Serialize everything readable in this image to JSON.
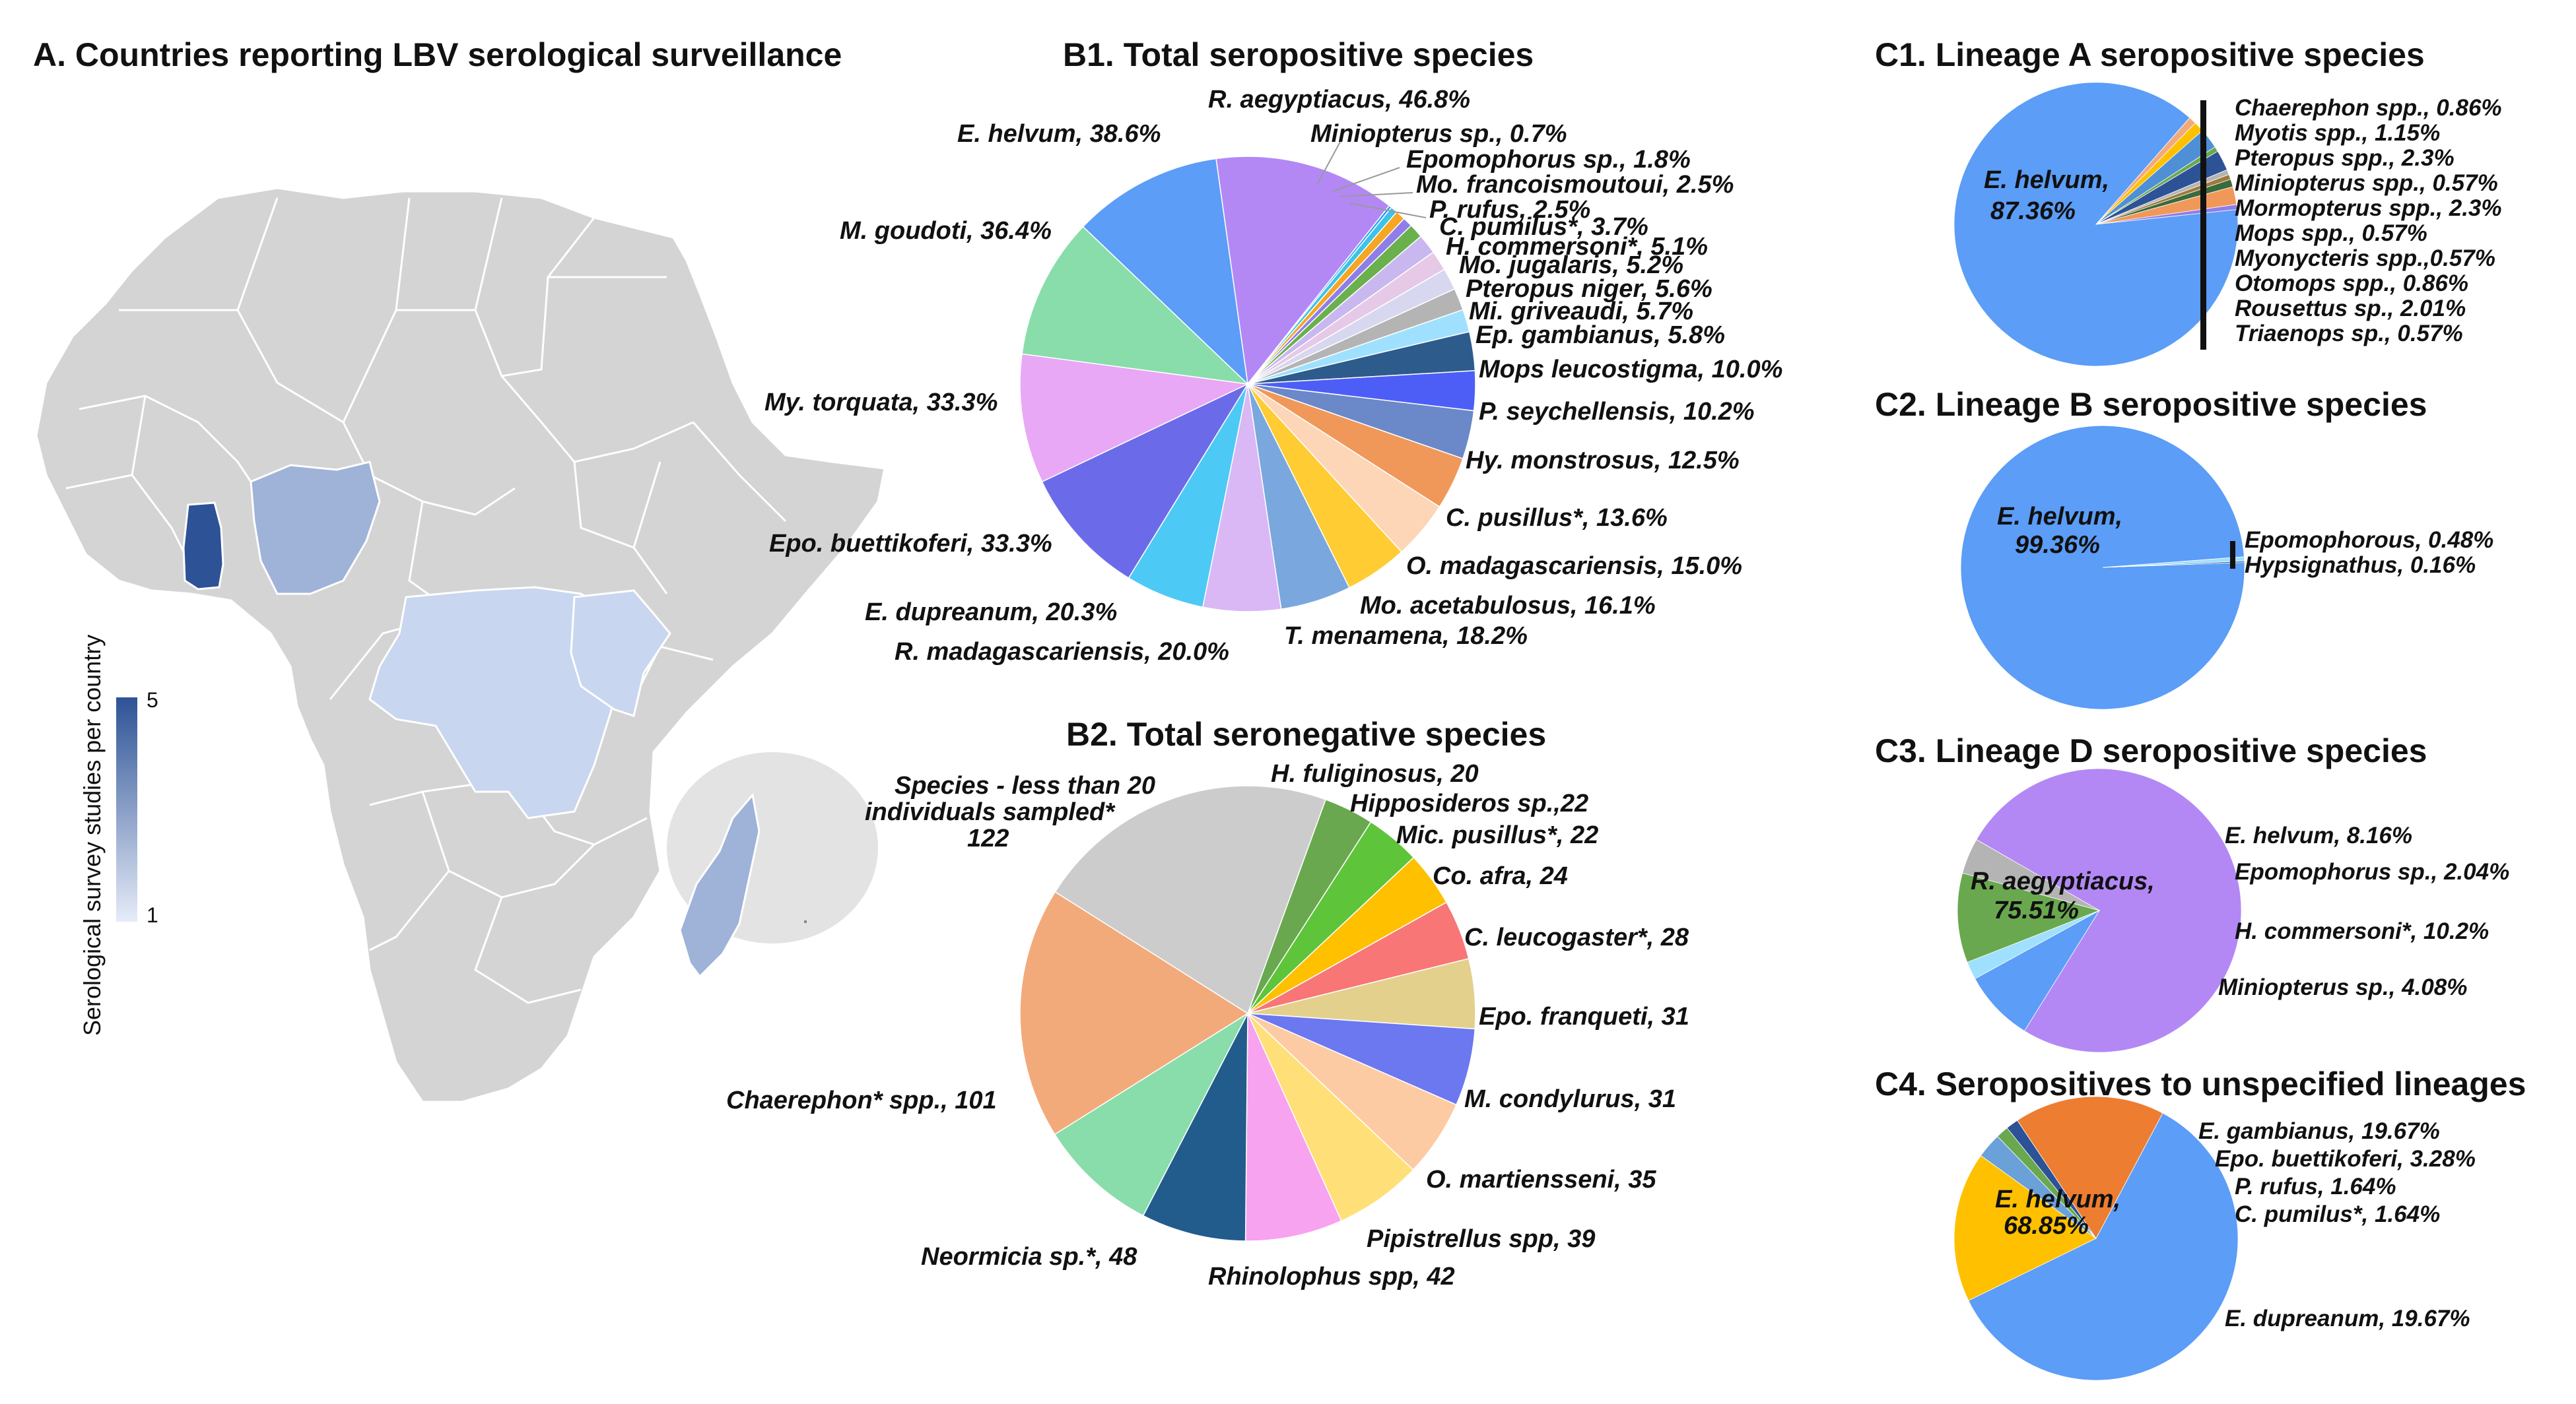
{
  "panelA": {
    "title": "A. Countries reporting LBV serological surveillance",
    "legend_title": "Serological survey studies per country",
    "legend_max": "5",
    "legend_min": "1",
    "colors": {
      "base": "#d4d4d4",
      "border": "#ffffff",
      "low": "#c9d6ef",
      "mid": "#9fb2d8",
      "high": "#2d5296",
      "inset": "#e3e3e3"
    }
  },
  "chart_data": [
    {
      "id": "B1",
      "type": "pie",
      "title": "B1. Total seropositive species",
      "slices": [
        {
          "label": "R. aegyptiacus, 46.8%",
          "value": 46.8,
          "color": "#b388f5"
        },
        {
          "label": "Miniopterus sp., 0.7%",
          "value": 0.7,
          "color": "#2a9df4"
        },
        {
          "label": "Epomophorus sp., 1.8%",
          "value": 1.8,
          "color": "#3cc3e8"
        },
        {
          "label": "Mo. francoismoutoui, 2.5%",
          "value": 2.5,
          "color": "#f5a623"
        },
        {
          "label": "P. rufus, 2.5%",
          "value": 2.5,
          "color": "#8f7ee8"
        },
        {
          "label": "C. pumilus*, 3.7%",
          "value": 3.7,
          "color": "#6ab04c"
        },
        {
          "label": "H. commersoni*, 5.1%",
          "value": 5.1,
          "color": "#c9b8f0"
        },
        {
          "label": "Mo. jugalaris, 5.2%",
          "value": 5.2,
          "color": "#e6c9e6"
        },
        {
          "label": "Pteropus niger, 5.6%",
          "value": 5.6,
          "color": "#d7d7f0"
        },
        {
          "label": "Mi. griveaudi, 5.7%",
          "value": 5.7,
          "color": "#b4b4b4"
        },
        {
          "label": "Ep. gambianus, 5.8%",
          "value": 5.8,
          "color": "#9fe0ff"
        },
        {
          "label": "Mops leucostigma, 10.0%",
          "value": 10.0,
          "color": "#2d5b8c"
        },
        {
          "label": "P. seychellensis, 10.2%",
          "value": 10.2,
          "color": "#4d5ef7"
        },
        {
          "label": "Hy. monstrosus, 12.5%",
          "value": 12.5,
          "color": "#6b88c9"
        },
        {
          "label": "C. pusillus*, 13.6%",
          "value": 13.6,
          "color": "#f0985a"
        },
        {
          "label": "O. madagascariensis, 15.0%",
          "value": 15.0,
          "color": "#fdd6b8"
        },
        {
          "label": "Mo. acetabulosus, 16.1%",
          "value": 16.1,
          "color": "#ffcc33"
        },
        {
          "label": "T. menamena, 18.2%",
          "value": 18.2,
          "color": "#7aa7dd"
        },
        {
          "label": "R. madagascariensis, 20.0%",
          "value": 20.0,
          "color": "#d9b8f5"
        },
        {
          "label": "E. dupreanum, 20.3%",
          "value": 20.3,
          "color": "#4dc9f6"
        },
        {
          "label": "Epo. buettikoferi, 33.3%",
          "value": 33.3,
          "color": "#6b6bea"
        },
        {
          "label": "My. torquata, 33.3%",
          "value": 33.3,
          "color": "#e8a8f5"
        },
        {
          "label": "M. goudoti, 36.4%",
          "value": 36.4,
          "color": "#88ddaa"
        },
        {
          "label": "E. helvum, 38.6%",
          "value": 38.6,
          "color": "#5b9df7"
        }
      ]
    },
    {
      "id": "B2",
      "type": "pie",
      "title": "B2. Total seronegative species",
      "slices": [
        {
          "label": "H. fuliginosus, 20",
          "value": 20,
          "color": "#6aa84f"
        },
        {
          "label": "Hipposideros sp.,22",
          "value": 22,
          "color": "#5ec43a"
        },
        {
          "label": "Mic. pusillus*, 22",
          "value": 22,
          "color": "#ffc000"
        },
        {
          "label": "Co. afra, 24",
          "value": 24,
          "color": "#f87676"
        },
        {
          "label": "C. leucogaster*, 28",
          "value": 28,
          "color": "#e3d08d"
        },
        {
          "label": "Epo. franqueti, 31",
          "value": 31,
          "color": "#6b78f0"
        },
        {
          "label": "M. condylurus, 31",
          "value": 31,
          "color": "#fdcba3"
        },
        {
          "label": "O. martiensseni, 35",
          "value": 35,
          "color": "#ffe078"
        },
        {
          "label": "Pipistrellus spp, 39",
          "value": 39,
          "color": "#f7a3ef"
        },
        {
          "label": "Rhinolophus spp, 42",
          "value": 42,
          "color": "#225c8c"
        },
        {
          "label": "Neormicia sp.*, 48",
          "value": 48,
          "color": "#88ddaa"
        },
        {
          "label": "Chaerephon* spp., 101",
          "value": 101,
          "color": "#f2aa7b"
        },
        {
          "label": "Species - less than 20 individuals sampled* 122",
          "value": 122,
          "color": "#cccccc"
        }
      ],
      "big_label_lines": [
        "Species - less than 20",
        "individuals sampled*",
        "122"
      ]
    },
    {
      "id": "C1",
      "type": "pie",
      "title": "C1. Lineage A seropositive species",
      "slices": [
        {
          "label": "E. helvum, 87.36%",
          "value": 87.36,
          "color": "#5b9df7"
        },
        {
          "label": "Chaerephon spp., 0.86%",
          "value": 0.86,
          "color": "#f2aa7b"
        },
        {
          "label": "Myotis spp., 1.15%",
          "value": 1.15,
          "color": "#ffc000"
        },
        {
          "label": "Pteropus spp., 2.3%",
          "value": 2.3,
          "color": "#4f8fd6"
        },
        {
          "label": "Miniopterus spp., 0.57%",
          "value": 0.57,
          "color": "#6aa84f"
        },
        {
          "label": "Mormopterus spp., 2.3%",
          "value": 2.3,
          "color": "#2d5296"
        },
        {
          "label": "Mops spp., 0.57%",
          "value": 0.57,
          "color": "#b4b4b4"
        },
        {
          "label": "Myonycteris spp.,0.57%",
          "value": 0.57,
          "color": "#9e7a3c"
        },
        {
          "label": "Otomops spp., 0.86%",
          "value": 0.86,
          "color": "#3a6b3a"
        },
        {
          "label": "Rousettus sp., 2.01%",
          "value": 2.01,
          "color": "#f0985a"
        },
        {
          "label": "Triaenops sp., 0.57%",
          "value": 0.57,
          "color": "#8f7ee8"
        }
      ],
      "center_label": [
        "E. helvum,",
        "87.36%"
      ],
      "side_labels": [
        "Chaerephon spp., 0.86%",
        "Myotis spp., 1.15%",
        "Pteropus spp., 2.3%",
        "Miniopterus spp., 0.57%",
        "Mormopterus spp., 2.3%",
        "Mops spp., 0.57%",
        "Myonycteris spp.,0.57%",
        "Otomops spp., 0.86%",
        "Rousettus sp., 2.01%",
        "Triaenops sp., 0.57%"
      ]
    },
    {
      "id": "C2",
      "type": "pie",
      "title": "C2. Lineage B seropositive species",
      "slices": [
        {
          "label": "E. helvum, 99.36%",
          "value": 99.36,
          "color": "#5b9df7"
        },
        {
          "label": "Epomophorous, 0.48%",
          "value": 0.48,
          "color": "#9fe0ff"
        },
        {
          "label": "Hypsignathus, 0.16%",
          "value": 0.16,
          "color": "#2d5296"
        }
      ],
      "center_label": [
        "E. helvum,",
        "99.36%"
      ],
      "side_labels": [
        "Epomophorous, 0.48%",
        "Hypsignathus, 0.16%"
      ]
    },
    {
      "id": "C3",
      "type": "pie",
      "title": "C3. Lineage D seropositive species",
      "slices": [
        {
          "label": "R. aegyptiacus, 75.51%",
          "value": 75.51,
          "color": "#b388f5"
        },
        {
          "label": "E. helvum, 8.16%",
          "value": 8.16,
          "color": "#5b9df7"
        },
        {
          "label": "Epomophorus sp., 2.04%",
          "value": 2.04,
          "color": "#9fe0ff"
        },
        {
          "label": "H. commersoni*, 10.2%",
          "value": 10.2,
          "color": "#6aa84f"
        },
        {
          "label": "Miniopterus sp., 4.08%",
          "value": 4.08,
          "color": "#b4b4b4"
        }
      ],
      "center_label": [
        "R. aegyptiacus,",
        "75.51%"
      ]
    },
    {
      "id": "C4",
      "type": "pie",
      "title": "C4. Seropositives to unspecified lineages",
      "slices": [
        {
          "label": "E. helvum, 68.85%",
          "value": 68.85,
          "color": "#5b9df7"
        },
        {
          "label": "E. gambianus, 19.67%",
          "value": 19.67,
          "color": "#ffc000"
        },
        {
          "label": "Epo. buettikoferi, 3.28%",
          "value": 3.28,
          "color": "#6ba1d9"
        },
        {
          "label": "P. rufus, 1.64%",
          "value": 1.64,
          "color": "#6aa84f"
        },
        {
          "label": "C. pumilus*, 1.64%",
          "value": 1.64,
          "color": "#2d5296"
        },
        {
          "label": "E. dupreanum, 19.67%",
          "value": 19.67,
          "color": "#ed7d31"
        }
      ],
      "center_label": [
        "E. helvum,",
        "68.85%"
      ]
    }
  ]
}
